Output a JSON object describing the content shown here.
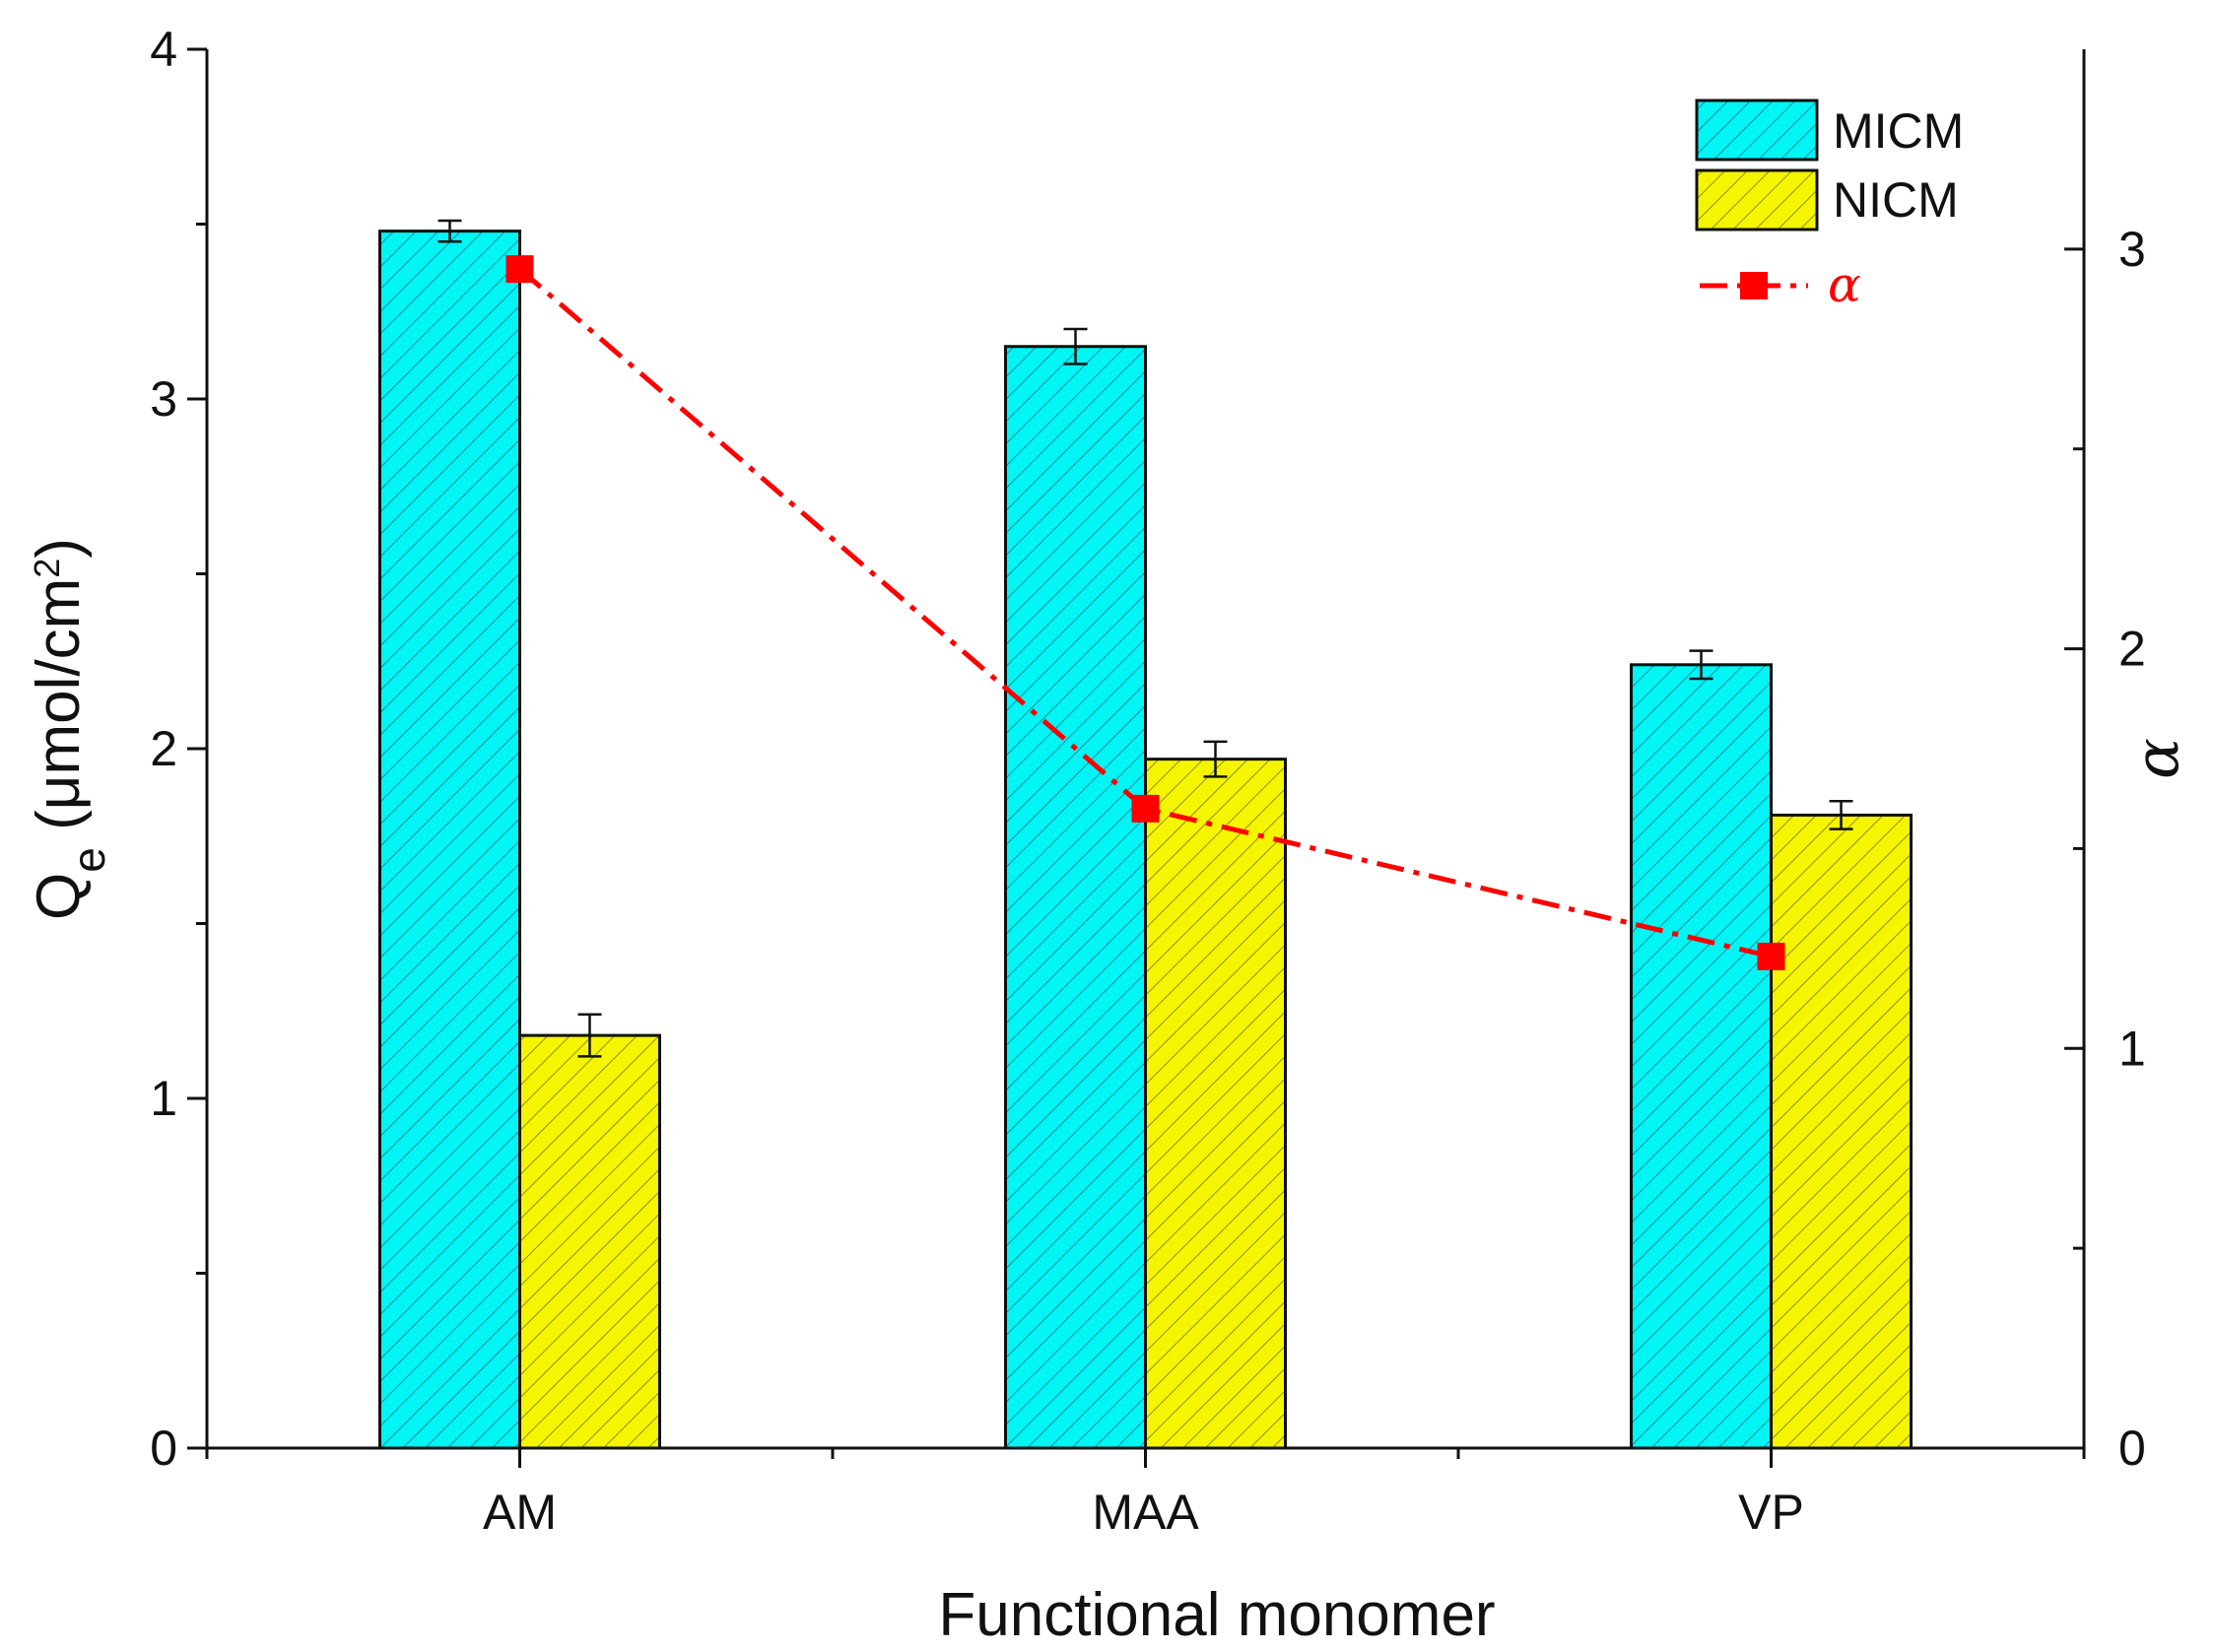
{
  "chart_data": {
    "type": "bar",
    "categories": [
      "AM",
      "MAA",
      "VP"
    ],
    "series": [
      {
        "name": "MICM",
        "axis": "left",
        "color": "#00f5f5",
        "hatch": "diagonal",
        "values": [
          3.48,
          3.15,
          2.24
        ],
        "errors": [
          0.03,
          0.05,
          0.04
        ]
      },
      {
        "name": "NICM",
        "axis": "left",
        "color": "#f5f500",
        "hatch": "diagonal",
        "values": [
          1.18,
          1.97,
          1.81
        ],
        "errors": [
          0.06,
          0.05,
          0.04
        ]
      }
    ],
    "line_series": {
      "name": "α",
      "axis": "right",
      "color": "#ff0000",
      "marker": "square",
      "style": "dash-dot",
      "values": [
        2.95,
        1.6,
        1.23
      ]
    },
    "xlabel": "Functional monomer",
    "ylabel": {
      "main": "Q",
      "sub": "e",
      "unit": " (μmol/cm",
      "sup": "2",
      "close": ")"
    },
    "y2label": "α",
    "ylim": [
      0,
      4
    ],
    "y2lim": [
      0,
      3.5
    ],
    "yticks": [
      "0",
      "1",
      "2",
      "3",
      "4"
    ],
    "y2ticks": [
      "0",
      "1",
      "2",
      "3"
    ],
    "legend_position": "top-right",
    "grid": false
  }
}
